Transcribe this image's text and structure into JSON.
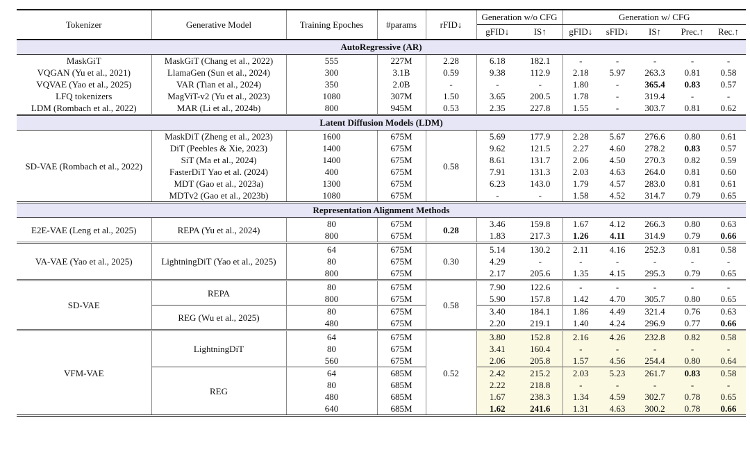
{
  "page": {
    "background": "#ffffff"
  },
  "colors": {
    "section_band_bg": "#E6E6F7",
    "vfm_highlight_bg": "#FBF9E2",
    "rule_dark": "#1a1a1a",
    "rule_gray": "#8a8a8a"
  },
  "table": {
    "header": {
      "tokenizer": "Tokenizer",
      "model": "Generative Model",
      "epochs": "Training Epoches",
      "params": "#params",
      "rfid": "rFID↓",
      "group_wo": "Generation w/o CFG",
      "group_w": "Generation w/ CFG",
      "sub": [
        "gFID↓",
        "IS↑",
        "gFID↓",
        "sFID↓",
        "IS↑",
        "Prec.↑",
        "Rec.↑"
      ]
    },
    "sections": [
      {
        "title": "AutoRegressive (AR)",
        "blocks": [
          {
            "perRow": true,
            "rows": [
              {
                "tokenizer": "MaskGiT",
                "model": "MaskGiT (Chang et al., 2022)",
                "epochs": "555",
                "params": "227M",
                "rfid": "2.28",
                "m": [
                  "6.18",
                  "182.1",
                  "-",
                  "-",
                  "-",
                  "-",
                  "-"
                ]
              },
              {
                "tokenizer": "VQGAN (Yu et al., 2021)",
                "model": "LlamaGen (Sun et al., 2024)",
                "epochs": "300",
                "params": "3.1B",
                "rfid": "0.59",
                "m": [
                  "9.38",
                  "112.9",
                  "2.18",
                  "5.97",
                  "263.3",
                  "0.81",
                  "0.58"
                ]
              },
              {
                "tokenizer": "VQVAE (Yao et al., 2025)",
                "model": "VAR (Tian et al., 2024)",
                "epochs": "350",
                "params": "2.0B",
                "rfid": "-",
                "m": [
                  "-",
                  "-",
                  "1.80",
                  "-",
                  {
                    "v": "365.4",
                    "b": true
                  },
                  {
                    "v": "0.83",
                    "b": true
                  },
                  "0.57"
                ]
              },
              {
                "tokenizer": "LFQ tokenizers",
                "model": "MagViT-v2 (Yu et al., 2023)",
                "epochs": "1080",
                "params": "307M",
                "rfid": "1.50",
                "m": [
                  "3.65",
                  "200.5",
                  "1.78",
                  "-",
                  "319.4",
                  "-",
                  "-"
                ]
              },
              {
                "tokenizer": "LDM (Rombach et al., 2022)",
                "model": "MAR (Li et al., 2024b)",
                "epochs": "800",
                "params": "945M",
                "rfid": "0.53",
                "m": [
                  "2.35",
                  "227.8",
                  "1.55",
                  "-",
                  "303.7",
                  "0.81",
                  "0.62"
                ]
              }
            ]
          }
        ]
      },
      {
        "title": "Latent Diffusion Models (LDM)",
        "blocks": [
          {
            "tokenizer": "SD-VAE (Rombach et al., 2022)",
            "rfid": "0.58",
            "subblocks": [
              {
                "rows": [
                  {
                    "model": "MaskDiT (Zheng et al., 2023)",
                    "epochs": "1600",
                    "params": "675M",
                    "m": [
                      "5.69",
                      "177.9",
                      "2.28",
                      "5.67",
                      "276.6",
                      "0.80",
                      "0.61"
                    ]
                  },
                  {
                    "model": "DiT (Peebles & Xie, 2023)",
                    "epochs": "1400",
                    "params": "675M",
                    "m": [
                      "9.62",
                      "121.5",
                      "2.27",
                      "4.60",
                      "278.2",
                      {
                        "v": "0.83",
                        "b": true
                      },
                      "0.57"
                    ]
                  },
                  {
                    "model": "SiT (Ma et al., 2024)",
                    "epochs": "1400",
                    "params": "675M",
                    "m": [
                      "8.61",
                      "131.7",
                      "2.06",
                      "4.50",
                      "270.3",
                      "0.82",
                      "0.59"
                    ]
                  },
                  {
                    "model": "FasterDiT Yao et al. (2024)",
                    "epochs": "400",
                    "params": "675M",
                    "m": [
                      "7.91",
                      "131.3",
                      "2.03",
                      "4.63",
                      "264.0",
                      "0.81",
                      "0.60"
                    ]
                  },
                  {
                    "model": "MDT (Gao et al., 2023a)",
                    "epochs": "1300",
                    "params": "675M",
                    "m": [
                      "6.23",
                      "143.0",
                      "1.79",
                      "4.57",
                      "283.0",
                      "0.81",
                      "0.61"
                    ]
                  },
                  {
                    "model": "MDTv2 (Gao et al., 2023b)",
                    "epochs": "1080",
                    "params": "675M",
                    "m": [
                      "-",
                      "-",
                      "1.58",
                      "4.52",
                      "314.7",
                      "0.79",
                      "0.65"
                    ]
                  }
                ]
              }
            ]
          }
        ]
      },
      {
        "title": "Representation Alignment Methods",
        "blocks": [
          {
            "tokenizer": "E2E-VAE (Leng et al., 2025)",
            "rfid": {
              "v": "0.28",
              "b": true
            },
            "subblocks": [
              {
                "model": "REPA (Yu et al., 2024)",
                "rows": [
                  {
                    "epochs": "80",
                    "params": "675M",
                    "m": [
                      "3.46",
                      "159.8",
                      "1.67",
                      "4.12",
                      "266.3",
                      "0.80",
                      "0.63"
                    ]
                  },
                  {
                    "epochs": "800",
                    "params": "675M",
                    "m": [
                      "1.83",
                      "217.3",
                      {
                        "v": "1.26",
                        "b": true
                      },
                      {
                        "v": "4.11",
                        "b": true
                      },
                      "314.9",
                      "0.79",
                      {
                        "v": "0.66",
                        "b": true
                      }
                    ]
                  }
                ]
              }
            ]
          },
          {
            "tokenizer": "VA-VAE (Yao et al., 2025)",
            "rfid": "0.30",
            "subblocks": [
              {
                "model": "LightningDiT (Yao et al., 2025)",
                "rows": [
                  {
                    "epochs": "64",
                    "params": "675M",
                    "m": [
                      "5.14",
                      "130.2",
                      "2.11",
                      "4.16",
                      "252.3",
                      "0.81",
                      "0.58"
                    ]
                  },
                  {
                    "epochs": "80",
                    "params": "675M",
                    "m": [
                      "4.29",
                      "-",
                      "-",
                      "-",
                      "-",
                      "-",
                      "-"
                    ]
                  },
                  {
                    "epochs": "800",
                    "params": "675M",
                    "m": [
                      "2.17",
                      "205.6",
                      "1.35",
                      "4.15",
                      "295.3",
                      "0.79",
                      "0.65"
                    ]
                  }
                ]
              }
            ]
          },
          {
            "tokenizer": "SD-VAE",
            "rfid": "0.58",
            "subblocks": [
              {
                "model": "REPA",
                "rows": [
                  {
                    "epochs": "80",
                    "params": "675M",
                    "m": [
                      "7.90",
                      "122.6",
                      "-",
                      "-",
                      "-",
                      "-",
                      "-"
                    ]
                  },
                  {
                    "epochs": "800",
                    "params": "675M",
                    "m": [
                      "5.90",
                      "157.8",
                      "1.42",
                      "4.70",
                      "305.7",
                      "0.80",
                      "0.65"
                    ]
                  }
                ]
              },
              {
                "model": "REG (Wu et al., 2025)",
                "rows": [
                  {
                    "epochs": "80",
                    "params": "675M",
                    "m": [
                      "3.40",
                      "184.1",
                      "1.86",
                      "4.49",
                      "321.4",
                      "0.76",
                      "0.63"
                    ]
                  },
                  {
                    "epochs": "480",
                    "params": "675M",
                    "m": [
                      "2.20",
                      "219.1",
                      "1.40",
                      "4.24",
                      "296.9",
                      "0.77",
                      {
                        "v": "0.66",
                        "b": true
                      }
                    ]
                  }
                ]
              }
            ]
          },
          {
            "tokenizer": "VFM-VAE",
            "rfid": "0.52",
            "highlight": true,
            "subblocks": [
              {
                "model": "LightningDiT",
                "rows": [
                  {
                    "epochs": "64",
                    "params": "675M",
                    "m": [
                      "3.80",
                      "152.8",
                      "2.16",
                      "4.26",
                      "232.8",
                      "0.82",
                      "0.58"
                    ]
                  },
                  {
                    "epochs": "80",
                    "params": "675M",
                    "m": [
                      "3.41",
                      "160.4",
                      "-",
                      "-",
                      "-",
                      "-",
                      "-"
                    ]
                  },
                  {
                    "epochs": "560",
                    "params": "675M",
                    "m": [
                      "2.06",
                      "205.8",
                      "1.57",
                      "4.56",
                      "254.4",
                      "0.80",
                      "0.64"
                    ]
                  }
                ]
              },
              {
                "model": "REG",
                "rows": [
                  {
                    "epochs": "64",
                    "params": "685M",
                    "m": [
                      "2.42",
                      "215.2",
                      "2.03",
                      "5.23",
                      "261.7",
                      {
                        "v": "0.83",
                        "b": true
                      },
                      "0.58"
                    ]
                  },
                  {
                    "epochs": "80",
                    "params": "685M",
                    "m": [
                      "2.22",
                      "218.8",
                      "-",
                      "-",
                      "-",
                      "-",
                      "-"
                    ]
                  },
                  {
                    "epochs": "480",
                    "params": "685M",
                    "m": [
                      "1.67",
                      "238.3",
                      "1.34",
                      "4.59",
                      "302.7",
                      "0.78",
                      "0.65"
                    ]
                  },
                  {
                    "epochs": "640",
                    "params": "685M",
                    "m": [
                      {
                        "v": "1.62",
                        "b": true
                      },
                      {
                        "v": "241.6",
                        "b": true
                      },
                      "1.31",
                      "4.63",
                      "300.2",
                      "0.78",
                      {
                        "v": "0.66",
                        "b": true
                      }
                    ]
                  }
                ]
              }
            ]
          }
        ]
      }
    ]
  }
}
